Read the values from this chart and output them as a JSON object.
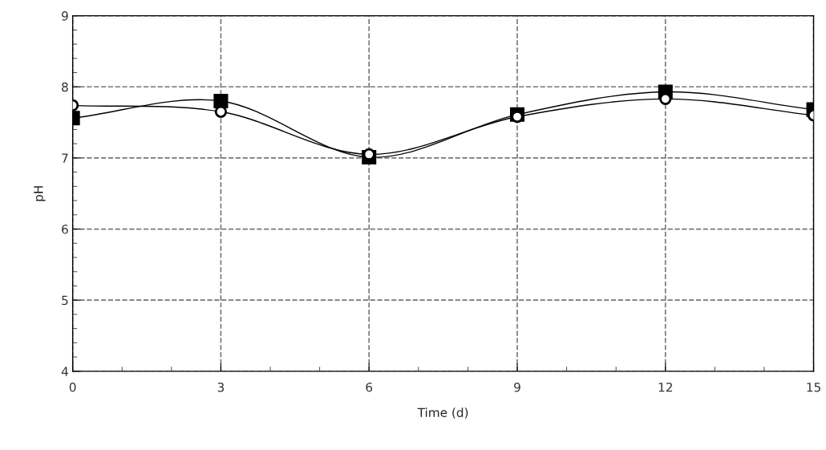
{
  "chart_data": {
    "type": "line",
    "xlabel": "Time (d)",
    "ylabel": "pH",
    "x": [
      0,
      3,
      6,
      9,
      12,
      15
    ],
    "series": [
      {
        "color": "#000000",
        "marker": "square",
        "values": [
          7.56,
          7.8,
          7.01,
          7.61,
          7.93,
          7.68
        ]
      },
      {
        "color": "#000000",
        "marker": "circle",
        "values": [
          7.74,
          7.65,
          7.05,
          7.58,
          7.83,
          7.6
        ]
      }
    ],
    "xlim": [
      0,
      15
    ],
    "xticks": [
      0,
      3,
      6,
      9,
      12,
      15
    ],
    "ylim": [
      4,
      9
    ],
    "yticks": [
      4,
      5,
      6,
      7,
      8,
      9
    ],
    "grid": true,
    "line_style": "solid",
    "legend": false
  }
}
